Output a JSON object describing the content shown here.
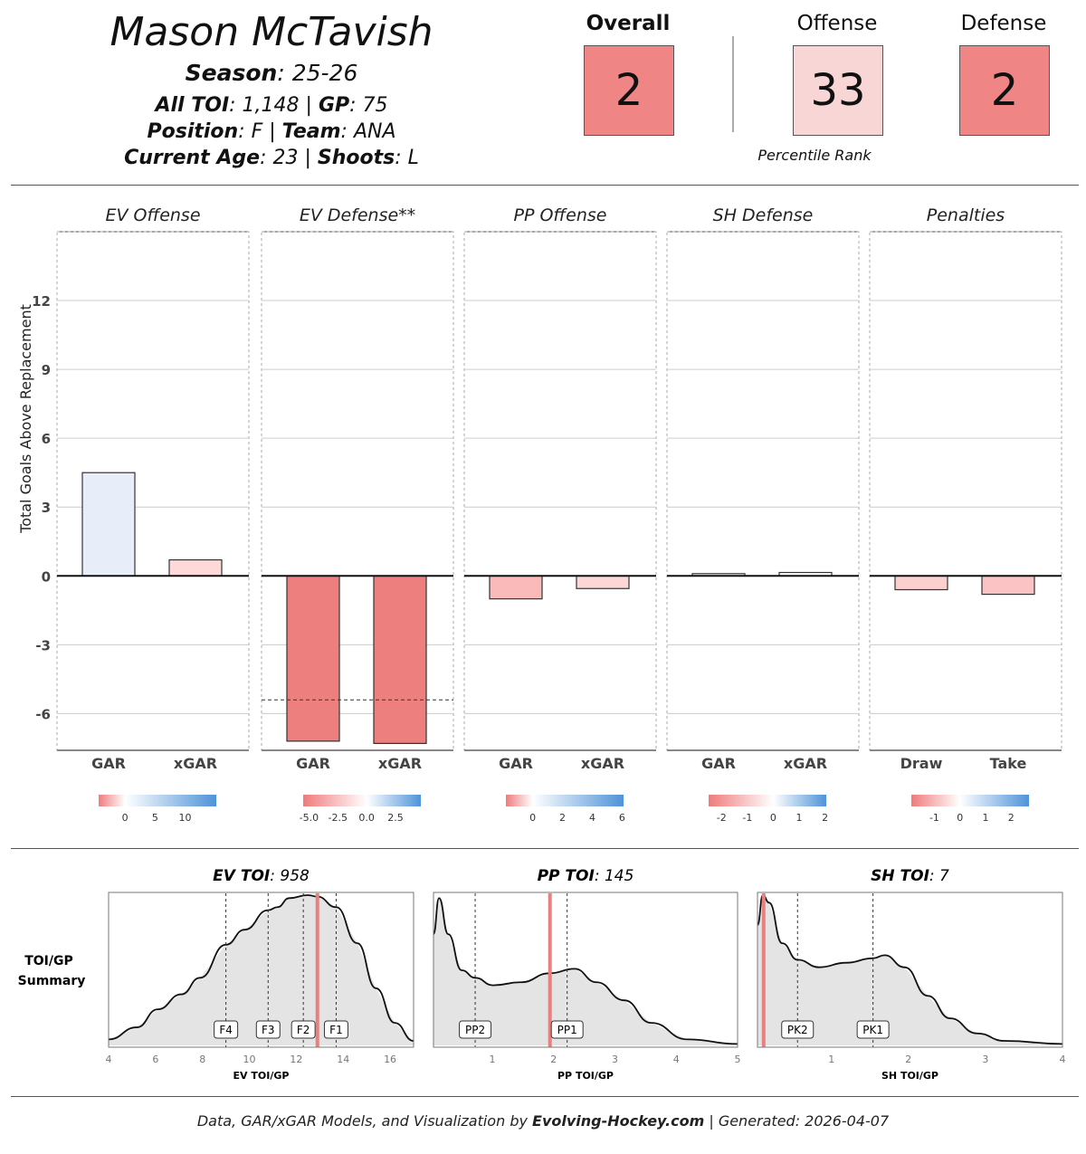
{
  "header": {
    "player_name": "Mason McTavish",
    "season_label": "Season",
    "season": "25-26",
    "toi_label": "All TOI",
    "toi": "1,148",
    "gp_label": "GP",
    "gp": "75",
    "position_label": "Position",
    "position": "F",
    "team_label": "Team",
    "team": "ANA",
    "age_label": "Current Age",
    "age": "23",
    "shoots_label": "Shoots",
    "shoots": "L"
  },
  "percentiles": {
    "caption": "Percentile Rank",
    "items": [
      {
        "label": "Overall",
        "value": "2",
        "color": "#f08585",
        "bold": true
      },
      {
        "label": "Offense",
        "value": "33",
        "color": "#f8d6d6",
        "bold": false
      },
      {
        "label": "Defense",
        "value": "2",
        "color": "#f08585",
        "bold": false
      }
    ]
  },
  "chart_data": [
    {
      "type": "bar",
      "ylabel": "Total Goals Above Replacement",
      "ylim": [
        -7.6,
        15
      ],
      "yticks": [
        -6,
        -3,
        0,
        3,
        6,
        9,
        12
      ],
      "grid": true,
      "facets": [
        {
          "title": "EV Offense",
          "categories": [
            "GAR",
            "xGAR"
          ],
          "values": [
            4.5,
            0.7
          ],
          "colors": [
            "#e8eef9",
            "#fdd9d9"
          ],
          "legend": {
            "range": [
              -4.4,
              15.2
            ],
            "ticks": [
              "0",
              "5",
              "10"
            ],
            "tick_values": [
              0,
              5,
              10
            ]
          }
        },
        {
          "title": "EV Defense**",
          "categories": [
            "GAR",
            "xGAR"
          ],
          "values": [
            -7.2,
            -7.3
          ],
          "colors": [
            "#ee7f7f",
            "#ee7f7f"
          ],
          "reference_line": -5.4,
          "legend": {
            "range": [
              -5.5,
              4.7
            ],
            "ticks": [
              "-5.0",
              "-2.5",
              "0.0",
              "2.5"
            ],
            "tick_values": [
              -5,
              -2.5,
              0,
              2.5
            ]
          }
        },
        {
          "title": "PP Offense",
          "categories": [
            "GAR",
            "xGAR"
          ],
          "values": [
            -1.0,
            -0.55
          ],
          "colors": [
            "#fbbaba",
            "#fdd6d6"
          ],
          "legend": {
            "range": [
              -1.8,
              6.1
            ],
            "ticks": [
              "0",
              "2",
              "4",
              "6"
            ],
            "tick_values": [
              0,
              2,
              4,
              6
            ]
          }
        },
        {
          "title": "SH Defense",
          "categories": [
            "GAR",
            "xGAR"
          ],
          "values": [
            0.1,
            0.15
          ],
          "colors": [
            "#fdfcfc",
            "#fdfcfc"
          ],
          "legend": {
            "range": [
              -2.5,
              2.05
            ],
            "ticks": [
              "-2",
              "-1",
              "0",
              "1",
              "2"
            ],
            "tick_values": [
              -2,
              -1,
              0,
              1,
              2
            ]
          }
        },
        {
          "title": "Penalties",
          "categories": [
            "Draw",
            "Take"
          ],
          "values": [
            -0.6,
            -0.8
          ],
          "colors": [
            "#fdd0d0",
            "#fbc3c3"
          ],
          "legend": {
            "range": [
              -1.9,
              2.7
            ],
            "ticks": [
              "-1",
              "0",
              "1",
              "2"
            ],
            "tick_values": [
              -1,
              0,
              1,
              2
            ]
          }
        }
      ]
    },
    {
      "type": "area",
      "row_label": [
        "TOI/GP",
        "Summary"
      ],
      "panels": [
        {
          "title_label": "EV TOI",
          "title_value": "958",
          "xlabel": "EV TOI/GP",
          "xlim": [
            4,
            17
          ],
          "xticks": [
            4,
            6,
            8,
            10,
            12,
            14,
            16
          ],
          "player_value": 12.9,
          "markers": [
            {
              "label": "F4",
              "x": 9.0
            },
            {
              "label": "F3",
              "x": 10.8
            },
            {
              "label": "F2",
              "x": 12.3
            },
            {
              "label": "F1",
              "x": 13.7
            }
          ],
          "density": [
            [
              4,
              0.04
            ],
            [
              5.2,
              0.12
            ],
            [
              6.1,
              0.24
            ],
            [
              7.1,
              0.34
            ],
            [
              7.9,
              0.45
            ],
            [
              9,
              0.67
            ],
            [
              9.8,
              0.77
            ],
            [
              10.8,
              0.9
            ],
            [
              11.2,
              0.92
            ],
            [
              11.7,
              0.98
            ],
            [
              12.5,
              1
            ],
            [
              12.9,
              0.99
            ],
            [
              13.7,
              0.92
            ],
            [
              14.6,
              0.68
            ],
            [
              15.4,
              0.38
            ],
            [
              16.2,
              0.15
            ],
            [
              17,
              0.03
            ]
          ]
        },
        {
          "title_label": "PP TOI",
          "title_value": "145",
          "xlabel": "PP TOI/GP",
          "xlim": [
            0.04,
            5
          ],
          "xticks": [
            1,
            2,
            3,
            4,
            5
          ],
          "player_value": 1.94,
          "markers": [
            {
              "label": "PP2",
              "x": 0.72
            },
            {
              "label": "PP1",
              "x": 2.22
            }
          ],
          "density": [
            [
              0.04,
              0.74
            ],
            [
              0.13,
              0.98
            ],
            [
              0.28,
              0.74
            ],
            [
              0.5,
              0.5
            ],
            [
              0.72,
              0.45
            ],
            [
              1.01,
              0.4
            ],
            [
              1.46,
              0.42
            ],
            [
              1.94,
              0.48
            ],
            [
              2.34,
              0.51
            ],
            [
              2.7,
              0.42
            ],
            [
              3.15,
              0.3
            ],
            [
              3.59,
              0.15
            ],
            [
              4.18,
              0.04
            ],
            [
              5,
              0.01
            ]
          ]
        },
        {
          "title_label": "SH TOI",
          "title_value": "7",
          "xlabel": "SH TOI/GP",
          "xlim": [
            0.04,
            4
          ],
          "xticks": [
            1,
            2,
            3,
            4
          ],
          "player_value": 0.12,
          "markers": [
            {
              "label": "PK2",
              "x": 0.56
            },
            {
              "label": "PK1",
              "x": 1.54
            }
          ],
          "density": [
            [
              0.04,
              0.8
            ],
            [
              0.11,
              1
            ],
            [
              0.19,
              0.95
            ],
            [
              0.36,
              0.68
            ],
            [
              0.56,
              0.57
            ],
            [
              0.84,
              0.52
            ],
            [
              1.19,
              0.55
            ],
            [
              1.54,
              0.58
            ],
            [
              1.69,
              0.6
            ],
            [
              1.95,
              0.52
            ],
            [
              2.25,
              0.33
            ],
            [
              2.54,
              0.18
            ],
            [
              2.89,
              0.08
            ],
            [
              3.25,
              0.03
            ],
            [
              4,
              0.01
            ]
          ]
        }
      ]
    }
  ],
  "footer": {
    "prefix": "Data, GAR/xGAR Models, and Visualization by ",
    "brand": "Evolving-Hockey.com",
    "suffix": " | Generated: 2026-04-07"
  }
}
